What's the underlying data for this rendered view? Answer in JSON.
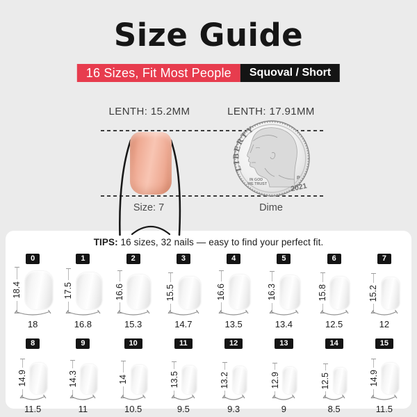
{
  "colors": {
    "page_bg": "#ebebeb",
    "accent_red": "#e73c4e",
    "banner_black": "#141414",
    "nail_pink": "#efab94",
    "panel_white": "#ffffff"
  },
  "header": {
    "title": "Size Guide",
    "banner_left": "16 Sizes, Fit Most People",
    "banner_right": "Squoval / Short"
  },
  "comparison": {
    "nail_length_label": "LENTH: 15.2MM",
    "dime_length_label": "LENTH: 17.91MM",
    "nail_caption": "Size: 7",
    "dime_caption": "Dime",
    "dime": {
      "liberty": "LIBERTY",
      "motto_line1": "IN GOD",
      "motto_line2": "WE TRUST",
      "mint_mark": "P",
      "year": "2021"
    }
  },
  "tips": {
    "label": "TIPS:",
    "text": " 16 sizes, 32 nails — easy to find your perfect fit."
  },
  "size_chart": {
    "rows": [
      [
        {
          "size": "0",
          "length_mm": "18.4",
          "width_mm": "18"
        },
        {
          "size": "1",
          "length_mm": "17.5",
          "width_mm": "16.8"
        },
        {
          "size": "2",
          "length_mm": "16.6",
          "width_mm": "15.3"
        },
        {
          "size": "3",
          "length_mm": "15.5",
          "width_mm": "14.7"
        },
        {
          "size": "4",
          "length_mm": "16.6",
          "width_mm": "13.5"
        },
        {
          "size": "5",
          "length_mm": "16.3",
          "width_mm": "13.4"
        },
        {
          "size": "6",
          "length_mm": "15.8",
          "width_mm": "12.5"
        },
        {
          "size": "7",
          "length_mm": "15.2",
          "width_mm": "12"
        }
      ],
      [
        {
          "size": "8",
          "length_mm": "14.9",
          "width_mm": "11.5"
        },
        {
          "size": "9",
          "length_mm": "14.3",
          "width_mm": "11"
        },
        {
          "size": "10",
          "length_mm": "14",
          "width_mm": "10.5"
        },
        {
          "size": "11",
          "length_mm": "13.5",
          "width_mm": "9.5"
        },
        {
          "size": "12",
          "length_mm": "13.2",
          "width_mm": "9.3"
        },
        {
          "size": "13",
          "length_mm": "12.9",
          "width_mm": "9"
        },
        {
          "size": "14",
          "length_mm": "12.5",
          "width_mm": "8.5"
        },
        {
          "size": "15",
          "length_mm": "14.9",
          "width_mm": "11.5"
        }
      ]
    ]
  }
}
